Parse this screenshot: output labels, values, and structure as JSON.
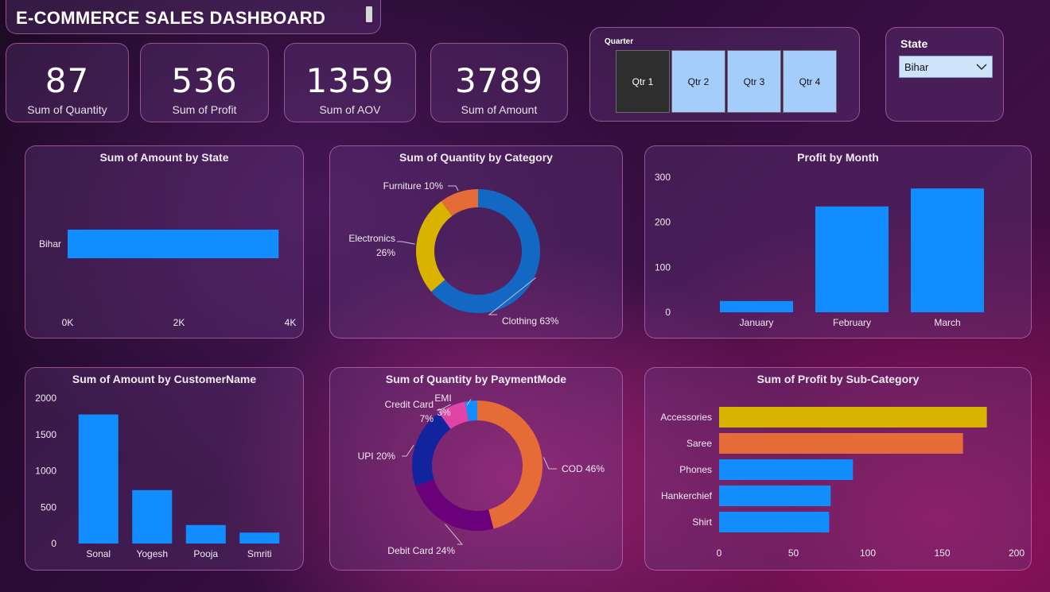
{
  "header": {
    "title": "E-COMMERCE SALES DASHBOARD"
  },
  "kpis": [
    {
      "value": "87",
      "label": "Sum of Quantity"
    },
    {
      "value": "536",
      "label": "Sum of Profit"
    },
    {
      "value": "1359",
      "label": "Sum of AOV"
    },
    {
      "value": "3789",
      "label": "Sum of Amount"
    }
  ],
  "quarter_slicer": {
    "label": "Quarter",
    "options": [
      "Qtr 1",
      "Qtr 2",
      "Qtr 3",
      "Qtr 4"
    ],
    "selected": "Qtr 1"
  },
  "state_slicer": {
    "label": "State",
    "value": "Bihar"
  },
  "colors": {
    "blue": "#118dff",
    "dark_blue": "#1368c4",
    "yellow": "#d9b300",
    "orange": "#e66c37",
    "navy": "#12239e",
    "purple": "#6b007b",
    "pink": "#e044a7"
  },
  "chart_data": [
    {
      "id": "amount_by_state",
      "type": "bar",
      "orientation": "horizontal",
      "title": "Sum of Amount by State",
      "categories": [
        "Bihar"
      ],
      "values": [
        3789
      ],
      "xlim": [
        0,
        4000
      ],
      "xticks": [
        "0K",
        "2K",
        "4K"
      ]
    },
    {
      "id": "qty_by_category",
      "type": "pie",
      "donut": true,
      "title": "Sum of Quantity by Category",
      "slices": [
        {
          "name": "Clothing",
          "value": 63,
          "label": "Clothing 63%",
          "color": "#1368c4"
        },
        {
          "name": "Electronics",
          "value": 26,
          "label": "Electronics",
          "label2": "26%",
          "color": "#d9b300"
        },
        {
          "name": "Furniture",
          "value": 10,
          "label": "Furniture 10%",
          "color": "#e66c37"
        }
      ]
    },
    {
      "id": "profit_by_month",
      "type": "bar",
      "title": "Profit by Month",
      "categories": [
        "January",
        "February",
        "March"
      ],
      "values": [
        25,
        235,
        275
      ],
      "ylim": [
        0,
        300
      ],
      "yticks": [
        "0",
        "100",
        "200",
        "300"
      ],
      "ytick_values": [
        0,
        100,
        200,
        300
      ]
    },
    {
      "id": "amount_by_customer",
      "type": "bar",
      "title": "Sum of Amount by CustomerName",
      "categories": [
        "Sonal",
        "Yogesh",
        "Pooja",
        "Smriti"
      ],
      "values": [
        1775,
        735,
        255,
        150
      ],
      "ylim": [
        0,
        2000
      ],
      "yticks": [
        "0",
        "500",
        "1000",
        "1500",
        "2000"
      ],
      "ytick_values": [
        0,
        500,
        1000,
        1500,
        2000
      ]
    },
    {
      "id": "qty_by_payment",
      "type": "pie",
      "donut": true,
      "title": "Sum of Quantity by PaymentMode",
      "slices": [
        {
          "name": "COD",
          "value": 46,
          "label": "COD 46%",
          "color": "#e66c37"
        },
        {
          "name": "Debit Card",
          "value": 24,
          "label": "Debit Card 24%",
          "color": "#6b007b"
        },
        {
          "name": "UPI",
          "value": 20,
          "label": "UPI 20%",
          "color": "#12239e"
        },
        {
          "name": "Credit Card",
          "value": 7,
          "label": "Credit Card",
          "label2": "7%",
          "color": "#e044a7"
        },
        {
          "name": "EMI",
          "value": 3,
          "label": "EMI",
          "label2": "3%",
          "color": "#118dff"
        }
      ]
    },
    {
      "id": "profit_by_subcategory",
      "type": "bar",
      "orientation": "horizontal",
      "title": "Sum of Profit by Sub-Category",
      "categories": [
        "Accessories",
        "Saree",
        "Phones",
        "Hankerchief",
        "Shirt"
      ],
      "values": [
        180,
        164,
        90,
        75,
        74
      ],
      "colors": [
        "#d9b300",
        "#e66c37",
        "#118dff",
        "#118dff",
        "#118dff"
      ],
      "xlim": [
        0,
        200
      ],
      "xticks": [
        "0",
        "50",
        "100",
        "150",
        "200"
      ],
      "xtick_values": [
        0,
        50,
        100,
        150,
        200
      ]
    }
  ]
}
